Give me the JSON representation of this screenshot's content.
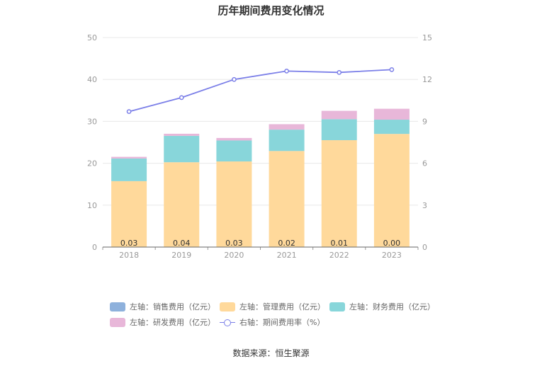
{
  "title": "历年期间费用变化情况",
  "source": "数据来源：恒生聚源",
  "colors": {
    "sales": "#8eb1dc",
    "admin": "#ffd99b",
    "finance": "#88d6da",
    "rnd": "#e8b7d9",
    "rate": "#7b7fe8",
    "axis_text": "#999999",
    "grid": "#e8e8e8"
  },
  "legend": [
    {
      "label": "左轴：销售费用（亿元）",
      "color_key": "sales",
      "kind": "bar"
    },
    {
      "label": "左轴：管理费用（亿元）",
      "color_key": "admin",
      "kind": "bar"
    },
    {
      "label": "左轴：财务费用（亿元）",
      "color_key": "finance",
      "kind": "bar"
    },
    {
      "label": "左轴：研发费用（亿元）",
      "color_key": "rnd",
      "kind": "bar"
    },
    {
      "label": "右轴：期间费用率（%）",
      "color_key": "rate",
      "kind": "line"
    }
  ],
  "chart_data": {
    "type": "bar",
    "title": "历年期间费用变化情况",
    "categories": [
      "2018",
      "2019",
      "2020",
      "2021",
      "2022",
      "2023"
    ],
    "stacked": true,
    "series": [
      {
        "name": "左轴：销售费用（亿元）",
        "axis": "left",
        "values": [
          0.03,
          0.04,
          0.03,
          0.02,
          0.01,
          0.0
        ],
        "labels": [
          "0.03",
          "0.04",
          "0.03",
          "0.02",
          "0.01",
          "0.00"
        ]
      },
      {
        "name": "左轴：管理费用（亿元）",
        "axis": "left",
        "values": [
          15.7,
          20.2,
          20.4,
          22.9,
          25.5,
          27.0
        ]
      },
      {
        "name": "左轴：财务费用（亿元）",
        "axis": "left",
        "values": [
          5.4,
          6.3,
          5.0,
          5.1,
          5.0,
          3.4
        ]
      },
      {
        "name": "左轴：研发费用（亿元）",
        "axis": "left",
        "values": [
          0.4,
          0.5,
          0.6,
          1.3,
          2.0,
          2.6
        ]
      },
      {
        "name": "右轴：期间费用率（%）",
        "axis": "right",
        "type": "line",
        "values": [
          9.7,
          10.7,
          12.0,
          12.6,
          12.5,
          12.7
        ]
      }
    ],
    "left_axis": {
      "ylim": [
        0,
        50
      ],
      "ticks": [
        "0",
        "10",
        "20",
        "30",
        "40",
        "50"
      ]
    },
    "right_axis": {
      "ylim": [
        0,
        15
      ],
      "ticks": [
        "0",
        "3",
        "6",
        "9",
        "12",
        "15"
      ]
    },
    "grid": true,
    "legend_position": "bottom"
  }
}
